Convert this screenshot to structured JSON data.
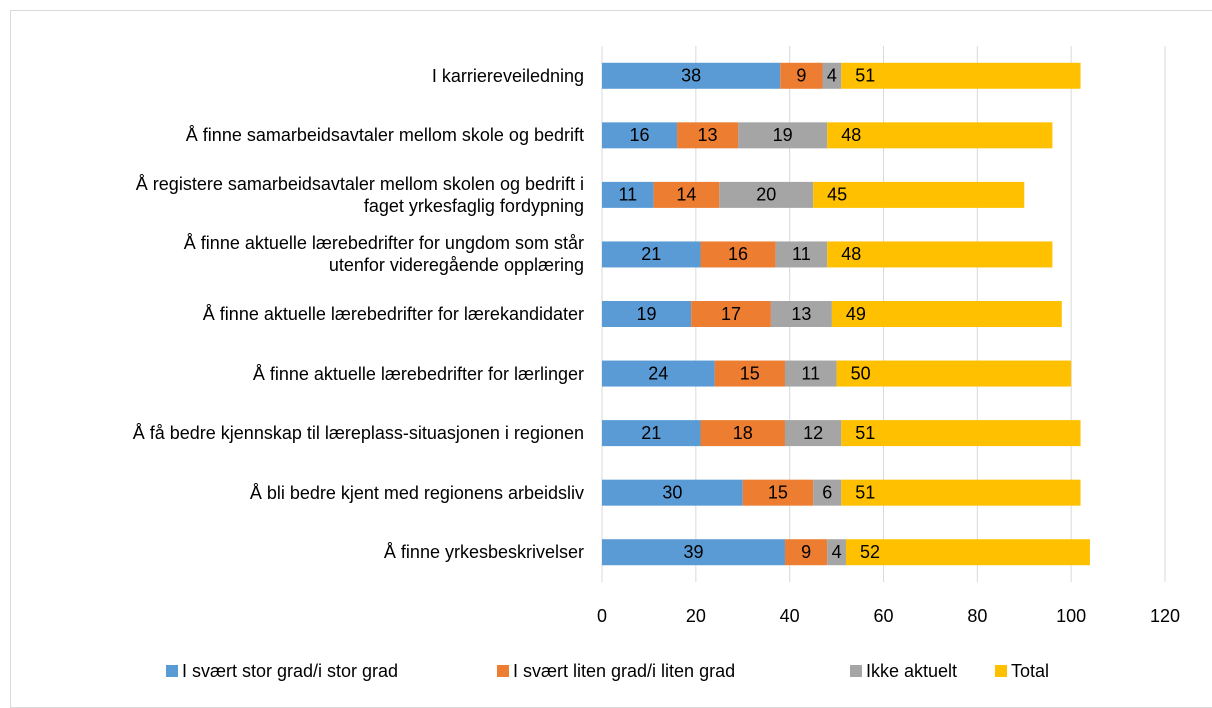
{
  "chart_data": {
    "type": "stacked-bar-horizontal",
    "categories": [
      "I karriereveiledning",
      "Å finne samarbeidsavtaler mellom skole og bedrift",
      "Å registere samarbeidsavtaler mellom skolen og bedrift i\nfaget yrkesfaglig fordypning",
      "Å finne aktuelle lærebedrifter for ungdom som står\nutenfor videregående opplæring",
      "Å finne aktuelle lærebedrifter for lærekandidater",
      "Å finne aktuelle lærebedrifter for lærlinger",
      "Å få bedre kjennskap til læreplass-situasjonen i regionen",
      "Å bli bedre kjent med regionens arbeidsliv",
      "Å finne yrkesbeskrivelser"
    ],
    "series": [
      {
        "name": "I svært stor grad/i stor grad",
        "color": "#5b9bd5",
        "values": [
          38,
          16,
          11,
          21,
          19,
          24,
          21,
          30,
          39
        ]
      },
      {
        "name": "I svært liten grad/i liten grad",
        "color": "#ed7d31",
        "values": [
          9,
          13,
          14,
          16,
          17,
          15,
          18,
          15,
          9
        ]
      },
      {
        "name": "Ikke aktuelt",
        "color": "#a5a5a5",
        "values": [
          4,
          19,
          20,
          11,
          13,
          11,
          12,
          6,
          4
        ]
      },
      {
        "name": "Total",
        "color": "#ffc000",
        "values": [
          51,
          48,
          45,
          48,
          49,
          50,
          51,
          51,
          52
        ]
      }
    ],
    "xlim": [
      0,
      120
    ],
    "xticks": [
      0,
      20,
      40,
      60,
      80,
      100,
      120
    ],
    "grid": true,
    "legend": "bottom"
  }
}
